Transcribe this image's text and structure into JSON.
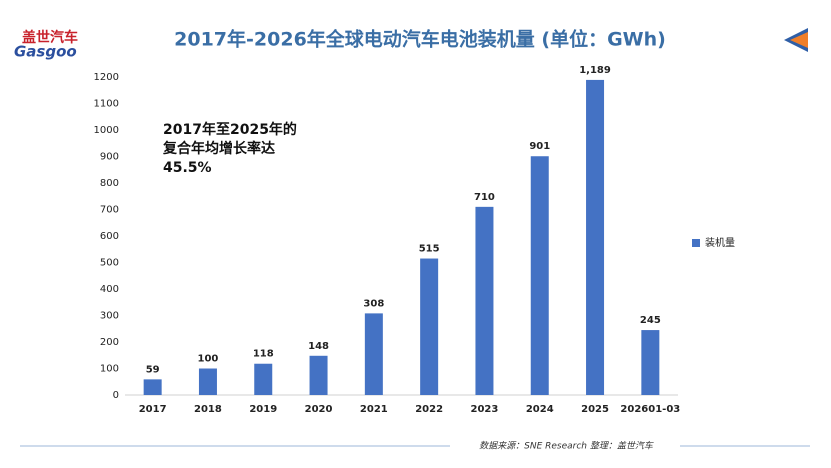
{
  "logo": {
    "cn": "盖世汽车",
    "en": "Gasgoo"
  },
  "footer": "数据来源：SNE Research 整理：盖世汽车",
  "chart_data": {
    "type": "bar",
    "title": "2017年-2026年全球电动汽车电池装机量 (单位：GWh)",
    "annotation": [
      "2017年至2025年的",
      "复合年均增长率达",
      "45.5%"
    ],
    "categories": [
      "2017",
      "2018",
      "2019",
      "2020",
      "2021",
      "2022",
      "2023",
      "2024",
      "2025",
      "202601-03"
    ],
    "series": [
      {
        "name": "装机量",
        "color": "#4472c4",
        "values": [
          59,
          100,
          118,
          148,
          308,
          515,
          710,
          901,
          1189,
          245
        ],
        "value_labels": [
          "59",
          "100",
          "118",
          "148",
          "308",
          "515",
          "710",
          "901",
          "1,189",
          "245"
        ]
      }
    ],
    "ylim": [
      0,
      1200
    ],
    "yticks": [
      0,
      100,
      200,
      300,
      400,
      500,
      600,
      700,
      800,
      900,
      1000,
      1100,
      1200
    ],
    "grid": false,
    "legend": "right"
  }
}
